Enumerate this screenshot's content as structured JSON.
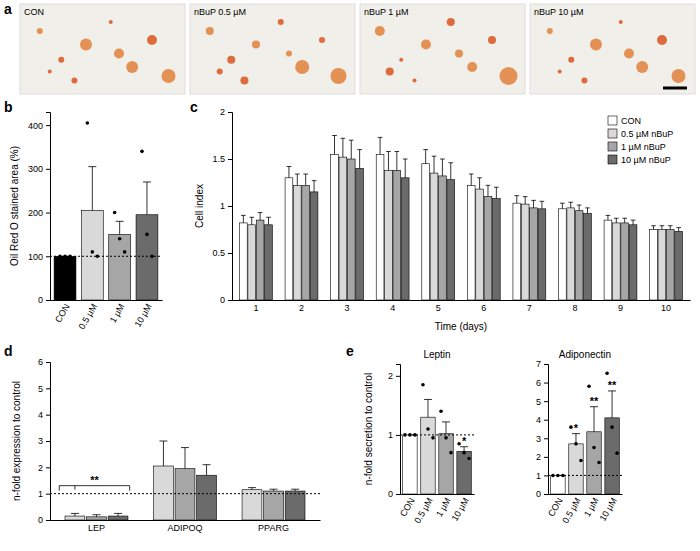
{
  "images": {
    "panel": "a",
    "titles": [
      "CON",
      "nBuP 0.5 µM",
      "nBuP 1 µM",
      "nBuP 10 µM"
    ]
  },
  "chart_data": [
    {
      "panel": "b",
      "type": "bar",
      "y_label": "Oil Red O stained area (%)",
      "categories": [
        "CON",
        "0.5 µM",
        "1 µM",
        "10 µM"
      ],
      "values": [
        100,
        205,
        150,
        195
      ],
      "errors": [
        null,
        100,
        30,
        75
      ],
      "colors": [
        "#000000",
        "#d9d9d9",
        "#a6a6a6",
        "#6b6b6b"
      ],
      "points": [
        [
          100,
          100,
          100
        ],
        [
          405,
          110,
          100
        ],
        [
          200,
          140,
          110
        ],
        [
          340,
          150,
          100
        ]
      ],
      "baseline": 100,
      "ylim": [
        0,
        430
      ],
      "yticks": [
        0,
        100,
        200,
        300,
        400
      ]
    },
    {
      "panel": "c",
      "type": "bar",
      "x_label": "Time (days)",
      "y_label": "Cell index",
      "categories": [
        "1",
        "2",
        "3",
        "4",
        "5",
        "6",
        "7",
        "8",
        "9",
        "10"
      ],
      "series": [
        {
          "name": "CON",
          "color": "#ffffff",
          "values": [
            0.82,
            1.3,
            1.55,
            1.55,
            1.45,
            1.22,
            1.03,
            0.97,
            0.85,
            0.75
          ],
          "errors": [
            0.08,
            0.12,
            0.2,
            0.18,
            0.15,
            0.12,
            0.08,
            0.06,
            0.05,
            0.04
          ]
        },
        {
          "name": "0.5 µM nBuP",
          "color": "#d9d9d9",
          "values": [
            0.8,
            1.22,
            1.52,
            1.38,
            1.35,
            1.18,
            1.02,
            0.98,
            0.82,
            0.75
          ],
          "errors": [
            0.08,
            0.12,
            0.2,
            0.2,
            0.18,
            0.12,
            0.08,
            0.06,
            0.05,
            0.04
          ]
        },
        {
          "name": "1 µM nBuP",
          "color": "#a6a6a6",
          "values": [
            0.85,
            1.22,
            1.5,
            1.38,
            1.32,
            1.1,
            0.98,
            0.95,
            0.82,
            0.75
          ],
          "errors": [
            0.08,
            0.12,
            0.2,
            0.2,
            0.18,
            0.12,
            0.08,
            0.06,
            0.05,
            0.04
          ]
        },
        {
          "name": "10 µM nBuP",
          "color": "#6b6b6b",
          "values": [
            0.8,
            1.15,
            1.4,
            1.3,
            1.28,
            1.08,
            0.97,
            0.92,
            0.8,
            0.73
          ],
          "errors": [
            0.08,
            0.12,
            0.2,
            0.2,
            0.18,
            0.12,
            0.08,
            0.06,
            0.05,
            0.04
          ]
        }
      ],
      "legend": "upper right",
      "ylim": [
        0,
        2
      ],
      "yticks": [
        0,
        0.5,
        1,
        1.5,
        2
      ]
    },
    {
      "panel": "d",
      "type": "bar",
      "y_label": "n-fold expression to control",
      "categories": [
        "LEP",
        "ADIPOQ",
        "PPARG"
      ],
      "series": [
        {
          "color": "#d9d9d9",
          "values": [
            0.15,
            2.05,
            1.15
          ],
          "errors": [
            0.1,
            0.95,
            0.08
          ]
        },
        {
          "color": "#a6a6a6",
          "values": [
            0.12,
            1.95,
            1.1
          ],
          "errors": [
            0.08,
            0.8,
            0.07
          ]
        },
        {
          "color": "#6b6b6b",
          "values": [
            0.15,
            1.7,
            1.1
          ],
          "errors": [
            0.1,
            0.4,
            0.07
          ]
        }
      ],
      "annotations": [
        "**",
        null,
        null
      ],
      "baseline": 1,
      "ylim": [
        0,
        6
      ],
      "yticks": [
        0,
        1,
        2,
        3,
        4,
        5,
        6
      ]
    },
    {
      "panel": "e",
      "type": "bar",
      "title": "Leptin",
      "y_label": "n-fold secretion to control",
      "categories": [
        "CON",
        "0.5 µM",
        "1 µM",
        "10 µM"
      ],
      "values": [
        1,
        1.3,
        1.02,
        0.72
      ],
      "errors": [
        null,
        0.3,
        0.2,
        0.08
      ],
      "colors": [
        "#ffffff",
        "#d9d9d9",
        "#a6a6a6",
        "#6b6b6b"
      ],
      "points": [
        [
          1,
          1,
          1
        ],
        [
          1.85,
          1.1,
          0.95
        ],
        [
          1.4,
          0.95,
          0.7
        ],
        [
          0.85,
          0.7,
          0.6
        ]
      ],
      "annotations": [
        null,
        null,
        null,
        "*"
      ],
      "baseline": 1,
      "ylim": [
        0,
        2.2
      ],
      "yticks": [
        0,
        1,
        2
      ]
    },
    {
      "type": "bar",
      "title": "Adiponectin",
      "categories": [
        "CON",
        "0.5 µM",
        "1 µM",
        "10 µM"
      ],
      "values": [
        1,
        2.7,
        3.35,
        4.1
      ],
      "errors": [
        null,
        0.55,
        1.35,
        1.45
      ],
      "colors": [
        "#ffffff",
        "#d9d9d9",
        "#a6a6a6",
        "#6b6b6b"
      ],
      "points": [
        [
          1,
          1,
          1
        ],
        [
          3.6,
          2.7,
          1.8
        ],
        [
          5.8,
          2.5,
          1.7
        ],
        [
          6.5,
          3.6,
          2.2
        ]
      ],
      "annotations": [
        null,
        "*",
        "**",
        "**"
      ],
      "baseline": 1,
      "ylim": [
        0,
        7
      ],
      "yticks": [
        0,
        1,
        2,
        3,
        4,
        5,
        6,
        7
      ]
    }
  ]
}
